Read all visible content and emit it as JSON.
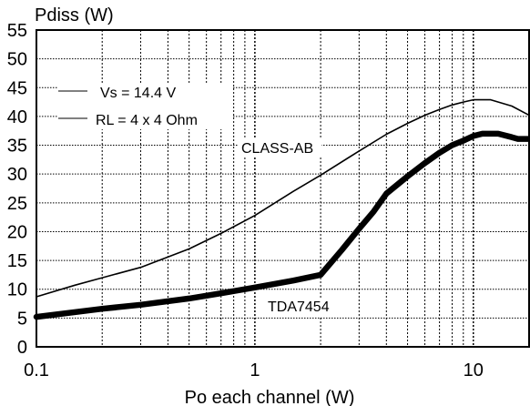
{
  "chart_data": {
    "type": "line",
    "xscale": "log",
    "xlim": [
      0.1,
      18
    ],
    "ylim": [
      0,
      55
    ],
    "ylabel": "Pdiss (W)",
    "xlabel": "Po each channel (W)",
    "x_ticks": [
      {
        "value": 0.1,
        "label": "0.1"
      },
      {
        "value": 1,
        "label": "1"
      },
      {
        "value": 10,
        "label": "10"
      }
    ],
    "y_ticks": [
      0,
      5,
      10,
      15,
      20,
      25,
      30,
      35,
      40,
      45,
      50,
      55
    ],
    "grid": true,
    "annotations": [
      "Vs = 14.4 V",
      "RL = 4 x 4 Ohm"
    ],
    "series": [
      {
        "name": "CLASS-AB",
        "style": "thin",
        "x": [
          0.1,
          0.15,
          0.2,
          0.3,
          0.5,
          0.7,
          1,
          1.5,
          2,
          3,
          4,
          5,
          6,
          7,
          8,
          9,
          10,
          12,
          15,
          18
        ],
        "y": [
          8.7,
          10.7,
          12.0,
          13.8,
          17.0,
          19.7,
          22.8,
          27.0,
          29.8,
          34.0,
          36.9,
          38.8,
          40.2,
          41.2,
          42.0,
          42.5,
          42.9,
          42.9,
          41.8,
          40.2
        ]
      },
      {
        "name": "TDA7454",
        "style": "thick",
        "x": [
          0.1,
          0.2,
          0.3,
          0.5,
          0.7,
          1,
          1.5,
          2,
          2.5,
          3,
          3.5,
          4,
          5,
          6,
          7,
          8,
          9,
          10,
          11,
          12,
          13,
          15,
          16,
          18
        ],
        "y": [
          5.2,
          6.6,
          7.3,
          8.4,
          9.3,
          10.3,
          11.5,
          12.5,
          16.8,
          20.5,
          23.5,
          26.6,
          29.6,
          31.9,
          33.7,
          35.0,
          35.8,
          36.6,
          37.0,
          37.0,
          37.0,
          36.4,
          36.1,
          36.1
        ]
      }
    ]
  }
}
